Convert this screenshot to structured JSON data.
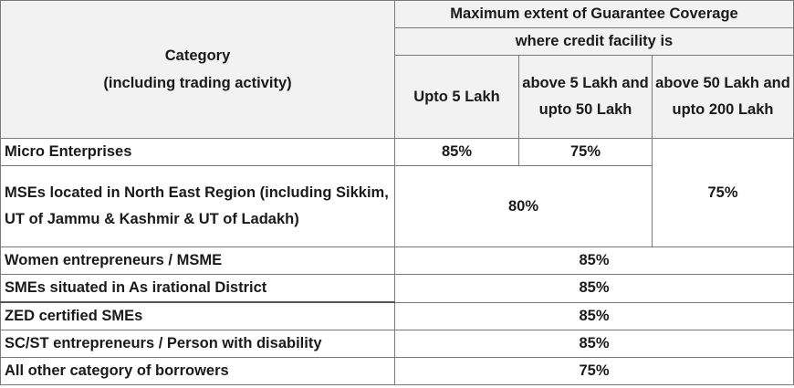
{
  "table": {
    "header": {
      "category_line1": "Category",
      "category_line2": "(including trading activity)",
      "coverage_title": "Maximum extent of Guarantee Coverage",
      "coverage_subtitle": "where credit facility is",
      "col_1": "Upto 5 Lakh",
      "col_2": "above 5 Lakh and upto 50 Lakh",
      "col_3": "above 50 Lakh and upto 200 Lakh"
    },
    "rows": [
      {
        "category": "Micro Enterprises",
        "col_1": "85%",
        "col_2": "75%"
      },
      {
        "category": "MSEs located in North East Region (including Sikkim, UT of Jammu & Kashmir & UT of Ladakh)",
        "col_1_2": "80%"
      },
      {
        "category": "Women entrepreneurs / MSME",
        "all": "85%"
      },
      {
        "category": "SMEs situated in As irational District",
        "all": "85%"
      },
      {
        "category": "ZED certified SMEs",
        "all": "85%"
      },
      {
        "category": "SC/ST entrepreneurs / Person with disability",
        "all": "85%"
      },
      {
        "category": "All other category of borrowers",
        "all": "75%"
      }
    ],
    "col_3_merged_value": "75%"
  }
}
